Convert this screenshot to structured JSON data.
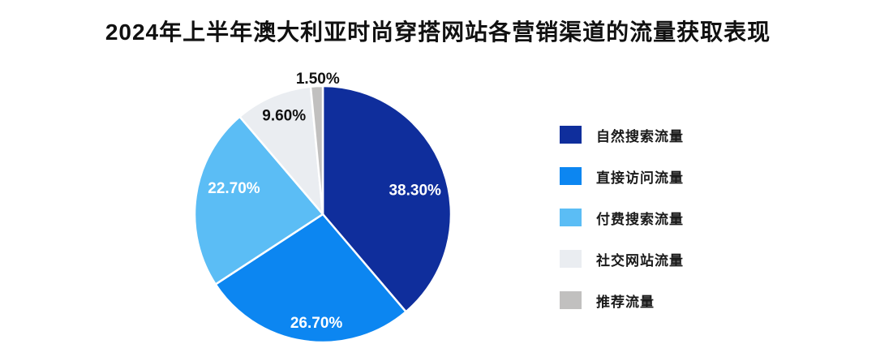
{
  "chart_data": {
    "type": "pie",
    "title": "2024年上半年澳大利亚时尚穿搭网站各营销渠道的流量获取表现",
    "labels": [
      "自然搜索流量",
      "直接访问流量",
      "付费搜索流量",
      "社交网站流量",
      "推荐流量"
    ],
    "values": [
      38.3,
      26.7,
      22.7,
      9.6,
      1.5
    ],
    "value_labels": [
      "38.30%",
      "26.70%",
      "22.70%",
      "9.60%",
      "1.50%"
    ],
    "colors": [
      "#0F2E9C",
      "#0C86F1",
      "#5BBDF5",
      "#EAEDF1",
      "#C1C0BF"
    ],
    "slice_label_text_colors": [
      "#FFFFFF",
      "#FFFFFF",
      "#FFFFFF",
      "#111111",
      "#111111"
    ],
    "slice_label_placement": [
      "inside",
      "inside",
      "inside",
      "inside",
      "outside"
    ],
    "slice_separator_color": "#FFFFFF",
    "start_angle_deg": 0,
    "direction": "clockwise",
    "legend_position": "right",
    "background": "#FFFFFF"
  }
}
